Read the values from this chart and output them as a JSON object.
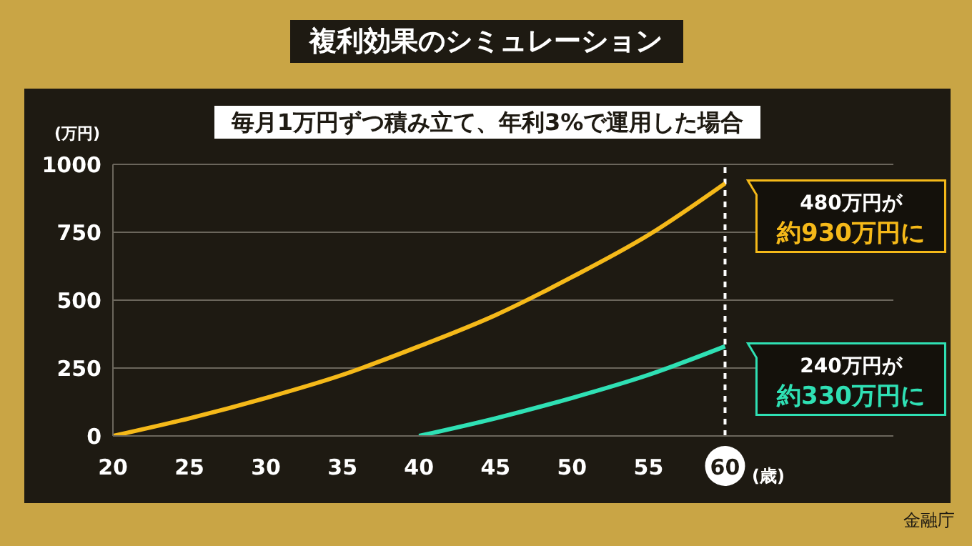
{
  "chart_data": {
    "type": "line",
    "title": "複利効果のシミュレーション",
    "subtitle": "毎月1万円ずつ積み立て、年利3%で運用した場合",
    "ylabel": "(万円)",
    "xlabel": "(歳)",
    "x": [
      20,
      25,
      30,
      35,
      40,
      45,
      50,
      55,
      60
    ],
    "series": [
      {
        "color": "#f5b919",
        "values": [
          0,
          65,
          140,
          225,
          330,
          445,
          585,
          740,
          930
        ]
      },
      {
        "color": "#2fe0b4",
        "x": [
          40,
          45,
          50,
          55,
          60
        ],
        "values": [
          0,
          65,
          140,
          225,
          330
        ]
      }
    ],
    "xlim": [
      20,
      71
    ],
    "xticks": [
      20,
      25,
      30,
      35,
      40,
      45,
      50,
      55,
      60
    ],
    "ylim": [
      0,
      1000
    ],
    "yticks": [
      0,
      250,
      500,
      750,
      1000
    ],
    "grid": "y",
    "marker": "none",
    "line_style": "solid",
    "ref_lines": [
      {
        "axis": "x",
        "value": 60,
        "color": "#ffffff",
        "line_style": "dashed"
      }
    ],
    "annotations": [
      "480万円が",
      {
        "text": "約930万円に",
        "x": 60,
        "y": 930
      },
      "240万円が",
      {
        "text": "約330万円に",
        "x": 60,
        "y": 330
      },
      "金融庁"
    ]
  }
}
